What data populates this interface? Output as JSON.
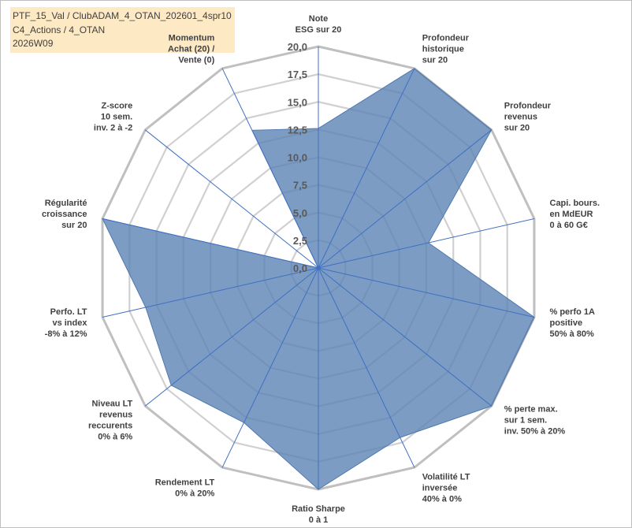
{
  "title": {
    "line1": "PTF_15_Val / ClubADAM_4_OTAN_202601_4spr10",
    "line2": "C4_Actions / 4_OTAN",
    "line3": "2026W09"
  },
  "chart_data": {
    "type": "radar",
    "title": "PTF_15_Val / ClubADAM_4_OTAN_202601_4spr10 C4_Actions / 4_OTAN 2026W09",
    "rlim": [
      0,
      20
    ],
    "ticks": [
      "0,0",
      "2,5",
      "5,0",
      "7,5",
      "10,0",
      "12,5",
      "15,0",
      "17,5",
      "20,0"
    ],
    "gridlines": true,
    "series_color": "#5b83b5",
    "series_fill_opacity": 0.8,
    "axes": [
      {
        "lines": [
          "Note",
          "ESG sur 20"
        ],
        "value": 12.6
      },
      {
        "lines": [
          "Profondeur",
          "historique",
          "sur 20"
        ],
        "value": 20.0
      },
      {
        "lines": [
          "Profondeur",
          "revenus",
          "sur 20"
        ],
        "value": 20.0
      },
      {
        "lines": [
          "Capi. bours.",
          "en MdEUR",
          "0 à 60 G€"
        ],
        "value": 10.2
      },
      {
        "lines": [
          "% perfo 1A",
          "positive",
          "50% à 80%"
        ],
        "value": 20.0
      },
      {
        "lines": [
          "% perte max.",
          "sur 1 sem.",
          "inv. 50% à 20%"
        ],
        "value": 20.0
      },
      {
        "lines": [
          "Volatilité LT",
          "inversée",
          "40% à 0%"
        ],
        "value": 17.0
      },
      {
        "lines": [
          "Ratio Sharpe",
          "0 à 1"
        ],
        "value": 20.0
      },
      {
        "lines": [
          "Rendement LT",
          "0% à 20%"
        ],
        "value": 15.5
      },
      {
        "lines": [
          "Niveau LT",
          "revenus",
          "reccurents",
          "0% à 6%"
        ],
        "value": 17.0
      },
      {
        "lines": [
          "Perfo. LT",
          "vs index",
          "-8% à 12%"
        ],
        "value": 16.0
      },
      {
        "lines": [
          "Régularité",
          "croissance",
          "sur 20"
        ],
        "value": 20.0
      },
      {
        "lines": [
          "Z-score",
          "10 sem.",
          "inv. 2 à -2"
        ],
        "value": 0.0
      },
      {
        "lines": [
          "Momentum",
          "Achat (20) /",
          "Vente (0)"
        ],
        "value": 13.8
      }
    ]
  }
}
